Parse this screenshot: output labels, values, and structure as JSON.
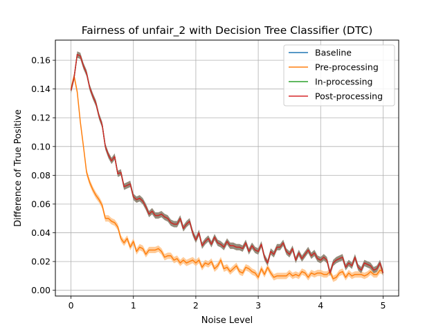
{
  "chart_data": {
    "type": "line",
    "title": "Fairness of unfair_2 with Decision Tree Classifier (DTC)",
    "xlabel": "Noise Level",
    "ylabel": "Difference of True Positive",
    "xlim": [
      -0.25,
      5.25
    ],
    "ylim": [
      -0.004,
      0.174
    ],
    "xticks": [
      0,
      1,
      2,
      3,
      4,
      5
    ],
    "yticks": [
      0.0,
      0.02,
      0.04,
      0.06,
      0.08,
      0.1,
      0.12,
      0.14,
      0.16
    ],
    "xtick_labels": [
      "0",
      "1",
      "2",
      "3",
      "4",
      "5"
    ],
    "ytick_labels": [
      "0.00",
      "0.02",
      "0.04",
      "0.06",
      "0.08",
      "0.10",
      "0.12",
      "0.14",
      "0.16"
    ],
    "grid": true,
    "legend_position": "top-right",
    "x": [
      0.0,
      0.05,
      0.1,
      0.15,
      0.2,
      0.25,
      0.3,
      0.35,
      0.4,
      0.45,
      0.5,
      0.55,
      0.6,
      0.65,
      0.7,
      0.75,
      0.8,
      0.85,
      0.9,
      0.95,
      1.0,
      1.05,
      1.1,
      1.15,
      1.2,
      1.25,
      1.3,
      1.35,
      1.4,
      1.45,
      1.5,
      1.55,
      1.6,
      1.65,
      1.7,
      1.75,
      1.8,
      1.85,
      1.9,
      1.95,
      2.0,
      2.05,
      2.1,
      2.15,
      2.2,
      2.25,
      2.3,
      2.35,
      2.4,
      2.45,
      2.5,
      2.55,
      2.6,
      2.65,
      2.7,
      2.75,
      2.8,
      2.85,
      2.9,
      2.95,
      3.0,
      3.05,
      3.1,
      3.15,
      3.2,
      3.25,
      3.3,
      3.35,
      3.4,
      3.45,
      3.5,
      3.55,
      3.6,
      3.65,
      3.7,
      3.75,
      3.8,
      3.85,
      3.9,
      3.95,
      4.0,
      4.05,
      4.1,
      4.15,
      4.2,
      4.25,
      4.3,
      4.35,
      4.4,
      4.45,
      4.5,
      4.55,
      4.6,
      4.65,
      4.7,
      4.75,
      4.8,
      4.85,
      4.9,
      4.95,
      5.0
    ],
    "series": [
      {
        "name": "Baseline",
        "color": "#1f77b4",
        "values": [
          0.139,
          0.148,
          0.164,
          0.163,
          0.156,
          0.151,
          0.141,
          0.135,
          0.13,
          0.121,
          0.115,
          0.1,
          0.094,
          0.09,
          0.093,
          0.081,
          0.082,
          0.072,
          0.073,
          0.074,
          0.065,
          0.063,
          0.064,
          0.062,
          0.058,
          0.053,
          0.055,
          0.052,
          0.052,
          0.053,
          0.051,
          0.05,
          0.047,
          0.046,
          0.046,
          0.05,
          0.043,
          0.046,
          0.048,
          0.04,
          0.035,
          0.04,
          0.031,
          0.034,
          0.036,
          0.032,
          0.037,
          0.033,
          0.032,
          0.03,
          0.034,
          0.031,
          0.031,
          0.03,
          0.03,
          0.029,
          0.033,
          0.027,
          0.031,
          0.028,
          0.027,
          0.032,
          0.023,
          0.019,
          0.027,
          0.025,
          0.03,
          0.03,
          0.033,
          0.027,
          0.025,
          0.029,
          0.021,
          0.026,
          0.022,
          0.025,
          0.028,
          0.024,
          0.026,
          0.022,
          0.021,
          0.023,
          0.021,
          0.012,
          0.019,
          0.021,
          0.022,
          0.023,
          0.016,
          0.019,
          0.017,
          0.023,
          0.016,
          0.014,
          0.019,
          0.018,
          0.017,
          0.014,
          0.015,
          0.019,
          0.012
        ]
      },
      {
        "name": "Pre-processing",
        "color": "#ff7f0e",
        "band": "#ffbb78",
        "values": [
          0.14,
          0.149,
          0.138,
          0.117,
          0.1,
          0.082,
          0.075,
          0.07,
          0.066,
          0.063,
          0.059,
          0.05,
          0.05,
          0.048,
          0.047,
          0.044,
          0.036,
          0.033,
          0.036,
          0.03,
          0.034,
          0.027,
          0.03,
          0.029,
          0.025,
          0.028,
          0.028,
          0.028,
          0.029,
          0.027,
          0.023,
          0.024,
          0.024,
          0.021,
          0.022,
          0.019,
          0.021,
          0.019,
          0.02,
          0.021,
          0.019,
          0.021,
          0.016,
          0.019,
          0.018,
          0.02,
          0.015,
          0.017,
          0.021,
          0.015,
          0.016,
          0.013,
          0.015,
          0.017,
          0.013,
          0.012,
          0.016,
          0.015,
          0.013,
          0.012,
          0.009,
          0.015,
          0.011,
          0.016,
          0.012,
          0.009,
          0.01,
          0.01,
          0.01,
          0.01,
          0.012,
          0.01,
          0.011,
          0.01,
          0.013,
          0.012,
          0.009,
          0.012,
          0.011,
          0.012,
          0.012,
          0.011,
          0.011,
          0.013,
          0.008,
          0.009,
          0.012,
          0.013,
          0.009,
          0.012,
          0.01,
          0.011,
          0.011,
          0.011,
          0.01,
          0.011,
          0.013,
          0.011,
          0.011,
          0.014,
          0.013
        ]
      },
      {
        "name": "In-processing",
        "color": "#2ca02c",
        "values": [
          0.139,
          0.148,
          0.164,
          0.163,
          0.156,
          0.151,
          0.141,
          0.135,
          0.13,
          0.121,
          0.115,
          0.1,
          0.094,
          0.09,
          0.093,
          0.081,
          0.082,
          0.072,
          0.073,
          0.074,
          0.065,
          0.063,
          0.064,
          0.062,
          0.058,
          0.053,
          0.055,
          0.052,
          0.052,
          0.053,
          0.051,
          0.05,
          0.047,
          0.046,
          0.046,
          0.05,
          0.043,
          0.046,
          0.048,
          0.04,
          0.035,
          0.04,
          0.031,
          0.034,
          0.036,
          0.032,
          0.037,
          0.033,
          0.032,
          0.03,
          0.034,
          0.031,
          0.031,
          0.03,
          0.03,
          0.029,
          0.033,
          0.027,
          0.031,
          0.028,
          0.027,
          0.032,
          0.023,
          0.019,
          0.027,
          0.025,
          0.03,
          0.03,
          0.033,
          0.027,
          0.025,
          0.029,
          0.021,
          0.026,
          0.022,
          0.025,
          0.028,
          0.024,
          0.026,
          0.022,
          0.021,
          0.023,
          0.021,
          0.012,
          0.019,
          0.021,
          0.022,
          0.023,
          0.016,
          0.019,
          0.017,
          0.023,
          0.016,
          0.014,
          0.019,
          0.018,
          0.017,
          0.014,
          0.015,
          0.019,
          0.012
        ]
      },
      {
        "name": "Post-processing",
        "color": "#d62728",
        "values": [
          0.139,
          0.148,
          0.164,
          0.163,
          0.156,
          0.151,
          0.141,
          0.135,
          0.13,
          0.121,
          0.115,
          0.1,
          0.094,
          0.09,
          0.093,
          0.081,
          0.082,
          0.072,
          0.073,
          0.074,
          0.065,
          0.063,
          0.064,
          0.062,
          0.058,
          0.053,
          0.055,
          0.052,
          0.052,
          0.053,
          0.051,
          0.05,
          0.047,
          0.046,
          0.046,
          0.05,
          0.043,
          0.046,
          0.048,
          0.04,
          0.035,
          0.04,
          0.031,
          0.034,
          0.036,
          0.032,
          0.037,
          0.033,
          0.032,
          0.03,
          0.034,
          0.031,
          0.031,
          0.03,
          0.03,
          0.029,
          0.033,
          0.027,
          0.031,
          0.028,
          0.027,
          0.032,
          0.023,
          0.019,
          0.027,
          0.025,
          0.03,
          0.03,
          0.033,
          0.027,
          0.025,
          0.029,
          0.021,
          0.026,
          0.022,
          0.025,
          0.028,
          0.024,
          0.026,
          0.022,
          0.021,
          0.023,
          0.021,
          0.012,
          0.019,
          0.021,
          0.022,
          0.023,
          0.016,
          0.019,
          0.017,
          0.023,
          0.016,
          0.014,
          0.019,
          0.018,
          0.017,
          0.014,
          0.015,
          0.019,
          0.012
        ]
      }
    ],
    "band_halfwidth": 0.0022,
    "overlap_band_color": "#8a7f6e"
  }
}
